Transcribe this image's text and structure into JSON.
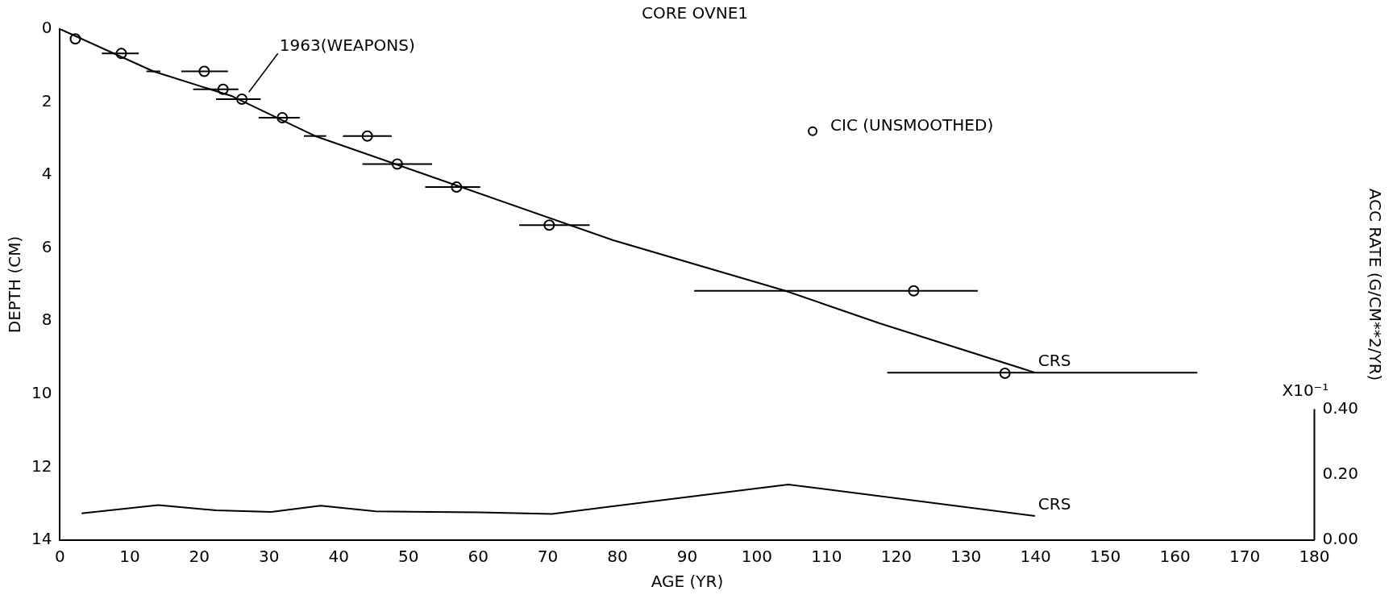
{
  "chart_data": {
    "type": "scatter",
    "title": "CORE OVNE1",
    "xlabel": "AGE (YR)",
    "ylabel": "DEPTH (CM)",
    "y2label": "ACC RATE (G/CM**2/YR)",
    "annotations": [
      "1963(WEAPONS)",
      "X10⁻¹"
    ],
    "series": [
      {
        "name": "CIC (UNSMOOTHED)",
        "color": "#000000",
        "marker": "circle",
        "x": [
          2.2,
          8.8,
          20.7,
          23.4,
          26.1,
          31.9,
          44.1,
          48.4,
          56.9,
          70.2,
          122.5,
          135.6
        ],
        "values": [
          0.27,
          0.67,
          1.16,
          1.65,
          1.92,
          2.43,
          2.93,
          3.7,
          4.33,
          5.37,
          7.17,
          9.43
        ],
        "xerrors": [
          null,
          [
            6.0,
            11.3
          ],
          [
            17.4,
            24.1
          ],
          [
            19.1,
            25.6
          ],
          [
            22.4,
            28.8
          ],
          [
            28.5,
            34.4
          ],
          [
            40.6,
            47.6
          ],
          [
            43.4,
            53.4
          ],
          [
            52.4,
            60.3
          ],
          [
            65.9,
            76.0
          ],
          [
            91.0,
            131.7
          ],
          null
        ]
      },
      {
        "name": "CRS",
        "type": "line",
        "color": "#000000",
        "marker": "none",
        "x": [
          0,
          13.4,
          24.7,
          36.6,
          45.9,
          79.3,
          104.1,
          117.6,
          139.9
        ],
        "values": [
          0,
          1.16,
          1.84,
          2.93,
          3.55,
          5.78,
          7.17,
          8.06,
          9.41
        ],
        "xerrors": [
          null,
          [
            12.4,
            14.4
          ],
          null,
          [
            35.0,
            38.2
          ],
          null,
          null,
          null,
          null,
          [
            118.7,
            163.2
          ]
        ]
      },
      {
        "name": "CRS",
        "type": "line",
        "axis": "y2",
        "color": "#000000",
        "marker": "none",
        "x": [
          3.1,
          14.1,
          22.4,
          30.3,
          37.4,
          45.3,
          60.0,
          70.6,
          104.5,
          139.9
        ],
        "values": [
          0.082,
          0.107,
          0.091,
          0.086,
          0.105,
          0.088,
          0.085,
          0.08,
          0.17,
          0.074
        ]
      }
    ],
    "xlim": [
      0,
      180
    ],
    "xticks": [
      0,
      10,
      20,
      30,
      40,
      50,
      60,
      70,
      80,
      90,
      100,
      110,
      120,
      130,
      140,
      150,
      160,
      170,
      180
    ],
    "ylim": [
      14,
      0
    ],
    "yticks": [
      0,
      2,
      4,
      6,
      8,
      10,
      12,
      14
    ],
    "y2lim": [
      0,
      1.56
    ],
    "y2ticks": [
      {
        "value": 0,
        "label": "0.00"
      },
      {
        "value": 0.2,
        "label": "0.20"
      },
      {
        "value": 0.4,
        "label": "0.40"
      }
    ],
    "grid": false,
    "legend": "top right"
  }
}
